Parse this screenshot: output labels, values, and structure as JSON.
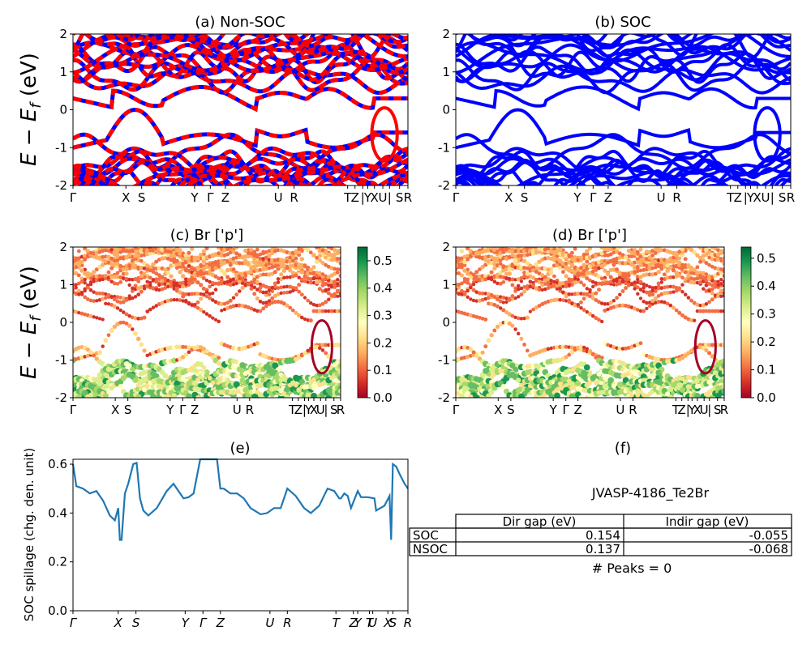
{
  "chart_data": [
    {
      "id": "a",
      "type": "line",
      "title": "(a) Non-SOC",
      "ylabel": "E − E_f (eV)",
      "ylim": [
        -2,
        2
      ],
      "yticks": [
        -2,
        -1,
        0,
        1,
        2
      ],
      "xticks": [
        {
          "label": "Γ",
          "x": 0
        },
        {
          "label": "X",
          "x": 0.158
        },
        {
          "label": "S",
          "x": 0.205
        },
        {
          "label": "Y",
          "x": 0.363
        },
        {
          "label": "Γ",
          "x": 0.41
        },
        {
          "label": "Z",
          "x": 0.455
        },
        {
          "label": "U",
          "x": 0.613
        },
        {
          "label": "R",
          "x": 0.66
        },
        {
          "label": "T",
          "x": 0.82
        },
        {
          "label": "Z",
          "x": 0.842
        },
        {
          "label": "|",
          "x": 0.865
        },
        {
          "label": "Y",
          "x": 0.88
        },
        {
          "label": "X",
          "x": 0.9
        },
        {
          "label": "U",
          "x": 0.925
        },
        {
          "label": "|",
          "x": 0.945
        },
        {
          "label": "S",
          "x": 0.975
        },
        {
          "label": "R",
          "x": 1
        }
      ],
      "series": [
        {
          "label": "",
          "color": "#ff0000"
        },
        {
          "label": "",
          "color": "#0000ff"
        }
      ]
    },
    {
      "id": "b",
      "type": "line",
      "title": "(b) SOC",
      "ylim": [
        -2,
        2
      ],
      "yticks": [
        -2,
        -1,
        0,
        1,
        2
      ],
      "xticks": [
        {
          "label": "Γ",
          "x": 0
        },
        {
          "label": "X",
          "x": 0.158
        },
        {
          "label": "S",
          "x": 0.205
        },
        {
          "label": "Y",
          "x": 0.363
        },
        {
          "label": "Γ",
          "x": 0.41
        },
        {
          "label": "Z",
          "x": 0.455
        },
        {
          "label": "U",
          "x": 0.613
        },
        {
          "label": "R",
          "x": 0.66
        },
        {
          "label": "T",
          "x": 0.82
        },
        {
          "label": "Z",
          "x": 0.842
        },
        {
          "label": "|",
          "x": 0.865
        },
        {
          "label": "Y",
          "x": 0.88
        },
        {
          "label": "X",
          "x": 0.9
        },
        {
          "label": "U",
          "x": 0.925
        },
        {
          "label": "|",
          "x": 0.945
        },
        {
          "label": "S",
          "x": 0.975
        },
        {
          "label": "R",
          "x": 1
        }
      ],
      "series": [
        {
          "label": "",
          "color": "#0000ff"
        }
      ]
    },
    {
      "id": "c",
      "type": "scatter",
      "title": "(c)  Br ['p']",
      "ylabel": "E − E_f (eV)",
      "ylim": [
        -2,
        2
      ],
      "yticks": [
        -2,
        -1,
        0,
        1,
        2
      ],
      "xticks": [
        {
          "label": "Γ",
          "x": 0
        },
        {
          "label": "X",
          "x": 0.158
        },
        {
          "label": "S",
          "x": 0.205
        },
        {
          "label": "Y",
          "x": 0.363
        },
        {
          "label": "Γ",
          "x": 0.41
        },
        {
          "label": "Z",
          "x": 0.455
        },
        {
          "label": "U",
          "x": 0.613
        },
        {
          "label": "R",
          "x": 0.66
        },
        {
          "label": "T",
          "x": 0.82
        },
        {
          "label": "Z",
          "x": 0.842
        },
        {
          "label": "|",
          "x": 0.865
        },
        {
          "label": "Y",
          "x": 0.88
        },
        {
          "label": "X",
          "x": 0.9
        },
        {
          "label": "U",
          "x": 0.925
        },
        {
          "label": "|",
          "x": 0.945
        },
        {
          "label": "S",
          "x": 0.975
        },
        {
          "label": "R",
          "x": 1
        }
      ],
      "colorbar": {
        "min": 0,
        "max": 0.55,
        "ticks": [
          "0.0",
          "0.1",
          "0.2",
          "0.3",
          "0.4",
          "0.5"
        ],
        "colormap": "RdYlGn"
      }
    },
    {
      "id": "d",
      "type": "scatter",
      "title": "(d) Br ['p']",
      "ylim": [
        -2,
        2
      ],
      "yticks": [
        -2,
        -1,
        0,
        1,
        2
      ],
      "xticks": [
        {
          "label": "Γ",
          "x": 0
        },
        {
          "label": "X",
          "x": 0.158
        },
        {
          "label": "S",
          "x": 0.205
        },
        {
          "label": "Y",
          "x": 0.363
        },
        {
          "label": "Γ",
          "x": 0.41
        },
        {
          "label": "Z",
          "x": 0.455
        },
        {
          "label": "U",
          "x": 0.613
        },
        {
          "label": "R",
          "x": 0.66
        },
        {
          "label": "T",
          "x": 0.82
        },
        {
          "label": "Z",
          "x": 0.842
        },
        {
          "label": "|",
          "x": 0.865
        },
        {
          "label": "Y",
          "x": 0.88
        },
        {
          "label": "X",
          "x": 0.9
        },
        {
          "label": "U",
          "x": 0.925
        },
        {
          "label": "|",
          "x": 0.945
        },
        {
          "label": "S",
          "x": 0.975
        },
        {
          "label": "R",
          "x": 1
        }
      ],
      "colorbar": {
        "min": 0,
        "max": 0.54,
        "ticks": [
          "0.0",
          "0.1",
          "0.2",
          "0.3",
          "0.4",
          "0.5"
        ],
        "colormap": "RdYlGn"
      }
    },
    {
      "id": "e",
      "type": "line",
      "title": "(e)",
      "ylabel": "SOC spillage (chg. den. unit)",
      "ylim": [
        0,
        0.62
      ],
      "yticks": [
        "0.0",
        "0.2",
        "0.4",
        "0.6"
      ],
      "xticks": [
        {
          "label": "Γ",
          "x": 0
        },
        {
          "label": "X",
          "x": 0.135
        },
        {
          "label": "S",
          "x": 0.188
        },
        {
          "label": "Y",
          "x": 0.335
        },
        {
          "label": "Γ",
          "x": 0.388
        },
        {
          "label": "Z",
          "x": 0.44
        },
        {
          "label": "U",
          "x": 0.588
        },
        {
          "label": "R",
          "x": 0.64
        },
        {
          "label": "T",
          "x": 0.785
        },
        {
          "label": "Z",
          "x": 0.837
        },
        {
          "label": "Y",
          "x": 0.85
        },
        {
          "label": "T",
          "x": 0.885
        },
        {
          "label": "U",
          "x": 0.895
        },
        {
          "label": "X",
          "x": 0.94
        },
        {
          "label": "S",
          "x": 0.955
        },
        {
          "label": "R",
          "x": 1
        }
      ],
      "series": [
        {
          "label": "",
          "color": "#1f77b4",
          "x": [
            0,
            0.01,
            0.03,
            0.05,
            0.07,
            0.09,
            0.11,
            0.125,
            0.135,
            0.14,
            0.145,
            0.155,
            0.165,
            0.18,
            0.19,
            0.2,
            0.21,
            0.225,
            0.25,
            0.28,
            0.3,
            0.315,
            0.33,
            0.345,
            0.36,
            0.38,
            0.39,
            0.395,
            0.4,
            0.43,
            0.44,
            0.45,
            0.47,
            0.49,
            0.51,
            0.53,
            0.56,
            0.58,
            0.6,
            0.62,
            0.64,
            0.665,
            0.69,
            0.71,
            0.735,
            0.76,
            0.78,
            0.795,
            0.8,
            0.81,
            0.82,
            0.83,
            0.85,
            0.86,
            0.88,
            0.9,
            0.905,
            0.93,
            0.945,
            0.95,
            0.955,
            0.965,
            0.975,
            0.99,
            1
          ],
          "y": [
            0.6,
            0.51,
            0.5,
            0.48,
            0.49,
            0.45,
            0.39,
            0.37,
            0.42,
            0.29,
            0.29,
            0.48,
            0.52,
            0.6,
            0.605,
            0.46,
            0.41,
            0.39,
            0.42,
            0.49,
            0.52,
            0.49,
            0.46,
            0.465,
            0.48,
            0.62,
            0.62,
            0.62,
            0.62,
            0.62,
            0.5,
            0.5,
            0.48,
            0.48,
            0.46,
            0.42,
            0.395,
            0.4,
            0.42,
            0.42,
            0.5,
            0.47,
            0.42,
            0.4,
            0.43,
            0.5,
            0.49,
            0.46,
            0.46,
            0.48,
            0.47,
            0.42,
            0.49,
            0.465,
            0.465,
            0.46,
            0.41,
            0.43,
            0.47,
            0.29,
            0.6,
            0.59,
            0.56,
            0.52,
            0.5
          ]
        }
      ]
    }
  ],
  "table_panel": {
    "title": "(f)",
    "material": "JVASP-4186_Te2Br",
    "columns": [
      "Dir gap (eV)",
      "Indir gap (eV)"
    ],
    "rows": [
      {
        "label": "SOC",
        "dir": "0.154",
        "indir": "-0.055"
      },
      {
        "label": "NSOC",
        "dir": "0.137",
        "indir": "-0.068"
      }
    ],
    "peaks": "# Peaks = 0"
  }
}
